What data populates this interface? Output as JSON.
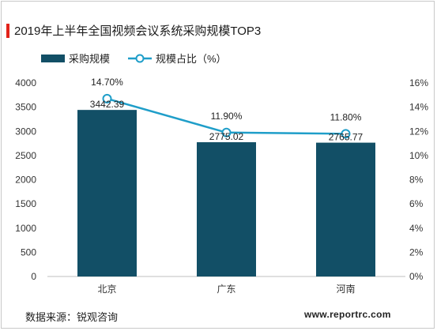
{
  "title": "2019年上半年全国视频会议系统采购规模TOP3",
  "source": "数据来源：锐观咨询",
  "website": "www.reportrc.com",
  "colors": {
    "bar": "#124f66",
    "line": "#1f9ec9",
    "accent": "#e2231a"
  },
  "chart_data": {
    "type": "bar",
    "categories": [
      "北京",
      "广东",
      "河南"
    ],
    "series": [
      {
        "name": "采购规模",
        "type": "bar",
        "axis": "left",
        "values": [
          3442.39,
          2775.02,
          2765.77
        ],
        "labels": [
          "3442.39",
          "2775.02",
          "2765.77"
        ]
      },
      {
        "name": "规模占比（%）",
        "type": "line",
        "axis": "right",
        "values": [
          14.7,
          11.9,
          11.8
        ],
        "labels": [
          "14.70%",
          "11.90%",
          "11.80%"
        ]
      }
    ],
    "y_left": {
      "range": [
        0,
        4000
      ],
      "ticks": [
        "0",
        "500",
        "1000",
        "1500",
        "2000",
        "2500",
        "3000",
        "3500",
        "4000"
      ]
    },
    "y_right": {
      "range": [
        0,
        16
      ],
      "ticks": [
        "0%",
        "2%",
        "4%",
        "6%",
        "8%",
        "10%",
        "12%",
        "14%",
        "16%"
      ]
    },
    "legend_position": "top-left",
    "grid": false
  }
}
